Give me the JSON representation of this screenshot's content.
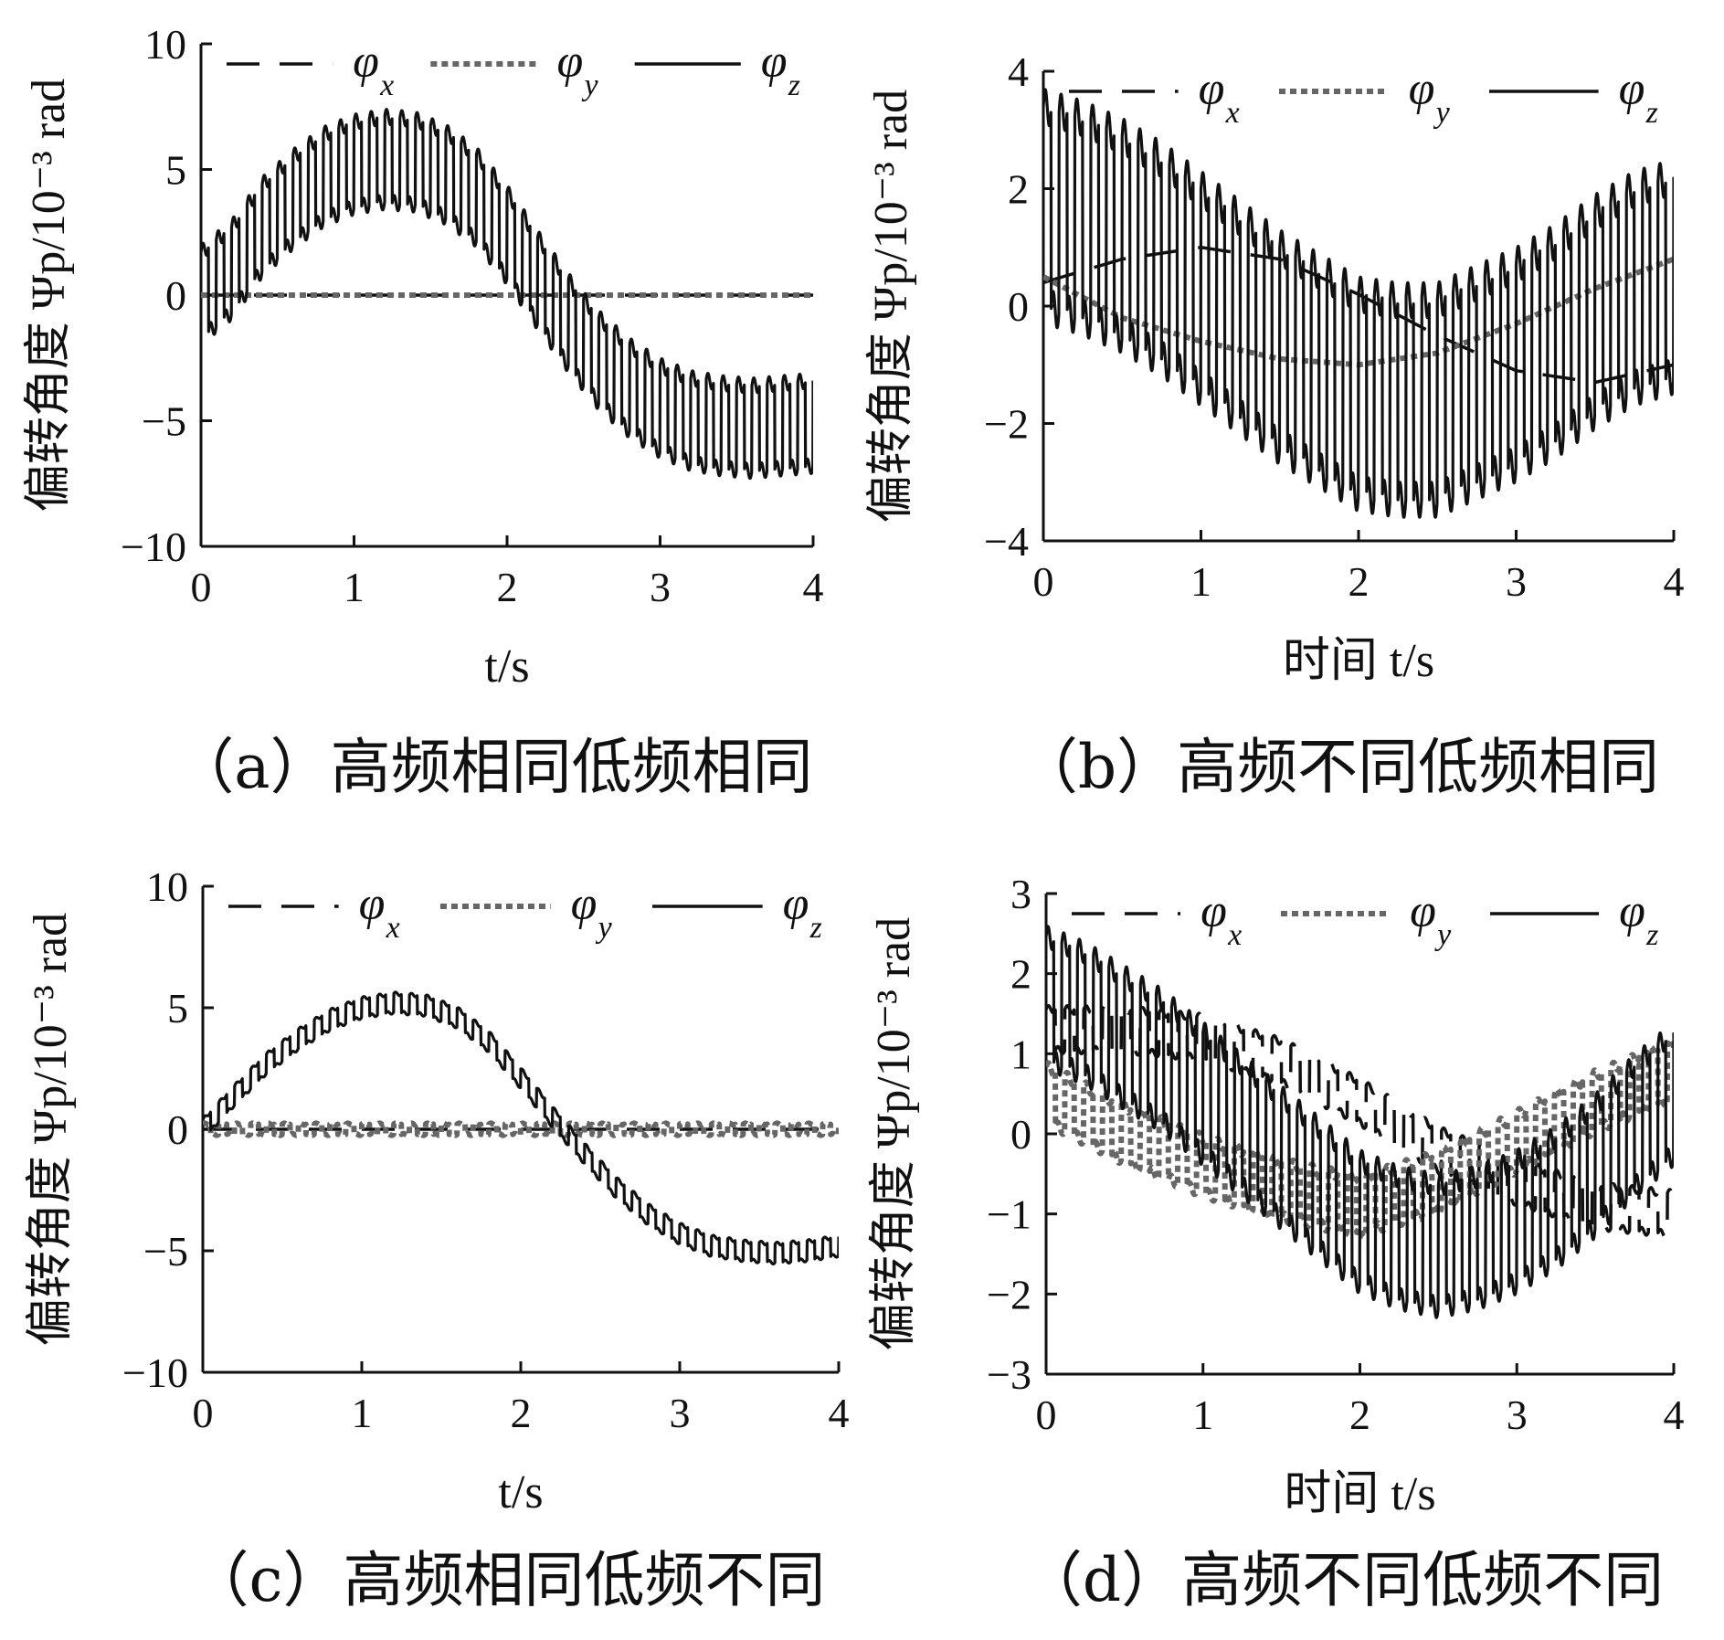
{
  "chart_data": [
    {
      "type": "line",
      "caption": "（a）高频相同低频相同",
      "xlabel": "t/s",
      "ylabel": "偏转角度 Ψp/10⁻³ rad",
      "xlim": [
        0,
        4
      ],
      "ylim": [
        -10,
        10
      ],
      "xticks": [
        0,
        1,
        2,
        3,
        4
      ],
      "yticks": [
        -10,
        -5,
        0,
        5,
        10
      ],
      "xtick_labels": [
        "0",
        "1",
        "2",
        "3",
        "4"
      ],
      "ytick_labels": [
        "−10",
        "−5",
        "0",
        "5",
        "10"
      ],
      "legend": {
        "placement": "top",
        "entries": [
          {
            "symbol": "φ",
            "sub": "x"
          },
          {
            "symbol": "φ",
            "sub": "y"
          },
          {
            "symbol": "φ",
            "sub": "z"
          }
        ]
      },
      "grid": false,
      "series": [
        {
          "name": "φx",
          "style": "dashed",
          "color": "#111111",
          "x": [
            0,
            4
          ],
          "y": [
            0,
            0
          ]
        },
        {
          "name": "φy",
          "style": "dotted",
          "color": "#666666",
          "x": [
            0,
            4
          ],
          "y": [
            0,
            0
          ]
        },
        {
          "name": "φz",
          "style": "solid",
          "color": "#111111",
          "x": [
            0,
            0.2,
            0.4,
            0.6,
            0.8,
            1.0,
            1.2,
            1.4,
            1.6,
            1.8,
            2.0,
            2.2,
            2.4,
            2.6,
            2.8,
            3.0,
            3.2,
            3.4,
            3.6,
            3.8,
            4.0
          ],
          "y": [
            0,
            1.0,
            2.7,
            3.8,
            4.7,
            5.2,
            5.4,
            5.3,
            4.8,
            3.9,
            2.4,
            0.6,
            -1.1,
            -2.6,
            -3.7,
            -4.5,
            -5.0,
            -5.2,
            -5.3,
            -5.2,
            -5.1
          ],
          "oscillation": {
            "period_s": 0.1,
            "half_amplitude": 2.0
          }
        }
      ]
    },
    {
      "type": "line",
      "caption": "（b）高频不同低频相同",
      "xlabel": "时间 t/s",
      "ylabel": "偏转角度 Ψp/10⁻³ rad",
      "xlim": [
        0,
        4
      ],
      "ylim": [
        -4,
        4
      ],
      "xticks": [
        0,
        1,
        2,
        3,
        4
      ],
      "yticks": [
        -4,
        -2,
        0,
        2,
        4
      ],
      "xtick_labels": [
        "0",
        "1",
        "2",
        "3",
        "4"
      ],
      "ytick_labels": [
        "−4",
        "−2",
        "0",
        "2",
        "4"
      ],
      "legend": {
        "placement": "top",
        "entries": [
          {
            "symbol": "φ",
            "sub": "x"
          },
          {
            "symbol": "φ",
            "sub": "y"
          },
          {
            "symbol": "φ",
            "sub": "z"
          }
        ]
      },
      "grid": false,
      "series": [
        {
          "name": "φx",
          "style": "dashed",
          "color": "#111111",
          "x": [
            0,
            0.5,
            1.0,
            1.5,
            2.0,
            2.5,
            3.0,
            3.5,
            4.0
          ],
          "y": [
            0.4,
            0.8,
            1.0,
            0.8,
            0.2,
            -0.5,
            -1.1,
            -1.3,
            -1.0
          ]
        },
        {
          "name": "φy",
          "style": "dotted",
          "color": "#666666",
          "x": [
            0,
            0.5,
            1.0,
            1.5,
            2.0,
            2.5,
            3.0,
            3.5,
            4.0
          ],
          "y": [
            0.5,
            -0.2,
            -0.6,
            -0.9,
            -1.0,
            -0.8,
            -0.3,
            0.3,
            0.8
          ]
        },
        {
          "name": "φz",
          "style": "solid",
          "color": "#111111",
          "x": [
            0,
            0.25,
            0.5,
            0.75,
            1.0,
            1.25,
            1.5,
            1.75,
            2.0,
            2.25,
            2.5,
            2.75,
            3.0,
            3.25,
            3.5,
            3.75,
            4.0
          ],
          "y": [
            1.7,
            1.5,
            1.2,
            0.8,
            0.3,
            -0.2,
            -0.7,
            -1.1,
            -1.5,
            -1.6,
            -1.6,
            -1.3,
            -1.0,
            -0.6,
            -0.1,
            0.3,
            0.5
          ],
          "oscillation": {
            "period_s": 0.1,
            "half_amplitude": 2.0
          }
        }
      ]
    },
    {
      "type": "line",
      "caption": "（c）高频相同低频不同",
      "xlabel": "t/s",
      "ylabel": "偏转角度 Ψp/10⁻³ rad",
      "xlim": [
        0,
        4
      ],
      "ylim": [
        -10,
        10
      ],
      "xticks": [
        0,
        1,
        2,
        3,
        4
      ],
      "yticks": [
        -10,
        -5,
        0,
        5,
        10
      ],
      "xtick_labels": [
        "0",
        "1",
        "2",
        "3",
        "4"
      ],
      "ytick_labels": [
        "−10",
        "−5",
        "0",
        "5",
        "10"
      ],
      "legend": {
        "placement": "top",
        "entries": [
          {
            "symbol": "φ",
            "sub": "x"
          },
          {
            "symbol": "φ",
            "sub": "y"
          },
          {
            "symbol": "φ",
            "sub": "z"
          }
        ]
      },
      "grid": false,
      "series": [
        {
          "name": "φx",
          "style": "dashed",
          "color": "#111111",
          "x": [
            0,
            4
          ],
          "y": [
            0,
            0
          ]
        },
        {
          "name": "φy",
          "style": "dotted",
          "color": "#666666",
          "x": [
            0,
            4
          ],
          "y": [
            0,
            0
          ],
          "oscillation": {
            "period_s": 0.1,
            "half_amplitude": 0.25
          }
        },
        {
          "name": "φz",
          "style": "solid",
          "color": "#111111",
          "x": [
            0,
            0.2,
            0.4,
            0.6,
            0.8,
            1.0,
            1.2,
            1.4,
            1.6,
            1.8,
            2.0,
            2.2,
            2.4,
            2.6,
            2.8,
            3.0,
            3.2,
            3.4,
            3.6,
            3.8,
            4.0
          ],
          "y": [
            0,
            1.4,
            2.7,
            3.7,
            4.5,
            5.0,
            5.2,
            5.1,
            4.6,
            3.6,
            2.1,
            0.5,
            -1.0,
            -2.4,
            -3.5,
            -4.3,
            -4.8,
            -5.0,
            -5.1,
            -5.0,
            -4.8
          ],
          "oscillation": {
            "period_s": 0.1,
            "half_amplitude": 0.45
          }
        }
      ]
    },
    {
      "type": "line",
      "caption": "（d）高频不同低频不同",
      "xlabel": "时间 t/s",
      "ylabel": "偏转角度 Ψp/10⁻³ rad",
      "xlim": [
        0,
        4
      ],
      "ylim": [
        -3,
        3
      ],
      "xticks": [
        0,
        1,
        2,
        3,
        4
      ],
      "yticks": [
        -3,
        -2,
        -1,
        0,
        1,
        2,
        3
      ],
      "xtick_labels": [
        "0",
        "1",
        "2",
        "3",
        "4"
      ],
      "ytick_labels": [
        "−3",
        "−2",
        "−1",
        "0",
        "1",
        "2",
        "3"
      ],
      "legend": {
        "placement": "top",
        "entries": [
          {
            "symbol": "φ",
            "sub": "x"
          },
          {
            "symbol": "φ",
            "sub": "y"
          },
          {
            "symbol": "φ",
            "sub": "z"
          }
        ]
      },
      "grid": false,
      "series": [
        {
          "name": "φx",
          "style": "dashed",
          "color": "#111111",
          "x": [
            0,
            0.5,
            1.0,
            1.5,
            2.0,
            2.5,
            3.0,
            3.5,
            4.0
          ],
          "y": [
            1.3,
            1.3,
            1.2,
            0.9,
            0.4,
            -0.2,
            -0.6,
            -0.9,
            -1.0
          ],
          "oscillation": {
            "period_s": 0.12,
            "half_amplitude": 0.3
          }
        },
        {
          "name": "φy",
          "style": "dotted",
          "color": "#666666",
          "x": [
            0,
            0.5,
            1.0,
            1.5,
            2.0,
            2.5,
            3.0,
            3.5,
            4.0
          ],
          "y": [
            0.5,
            0.0,
            -0.4,
            -0.7,
            -0.9,
            -0.6,
            -0.1,
            0.4,
            0.8
          ],
          "oscillation": {
            "period_s": 0.12,
            "half_amplitude": 0.4
          }
        },
        {
          "name": "φz",
          "style": "solid",
          "color": "#111111",
          "x": [
            0,
            0.25,
            0.5,
            0.75,
            1.0,
            1.25,
            1.5,
            1.75,
            2.0,
            2.25,
            2.5,
            2.75,
            3.0,
            3.25,
            3.5,
            3.75,
            4.0
          ],
          "y": [
            1.7,
            1.5,
            1.2,
            0.9,
            0.5,
            0.1,
            -0.3,
            -0.7,
            -1.1,
            -1.3,
            -1.4,
            -1.3,
            -1.1,
            -0.8,
            -0.4,
            0.1,
            0.5
          ],
          "oscillation": {
            "period_s": 0.1,
            "half_amplitude": 0.9
          }
        }
      ]
    }
  ]
}
